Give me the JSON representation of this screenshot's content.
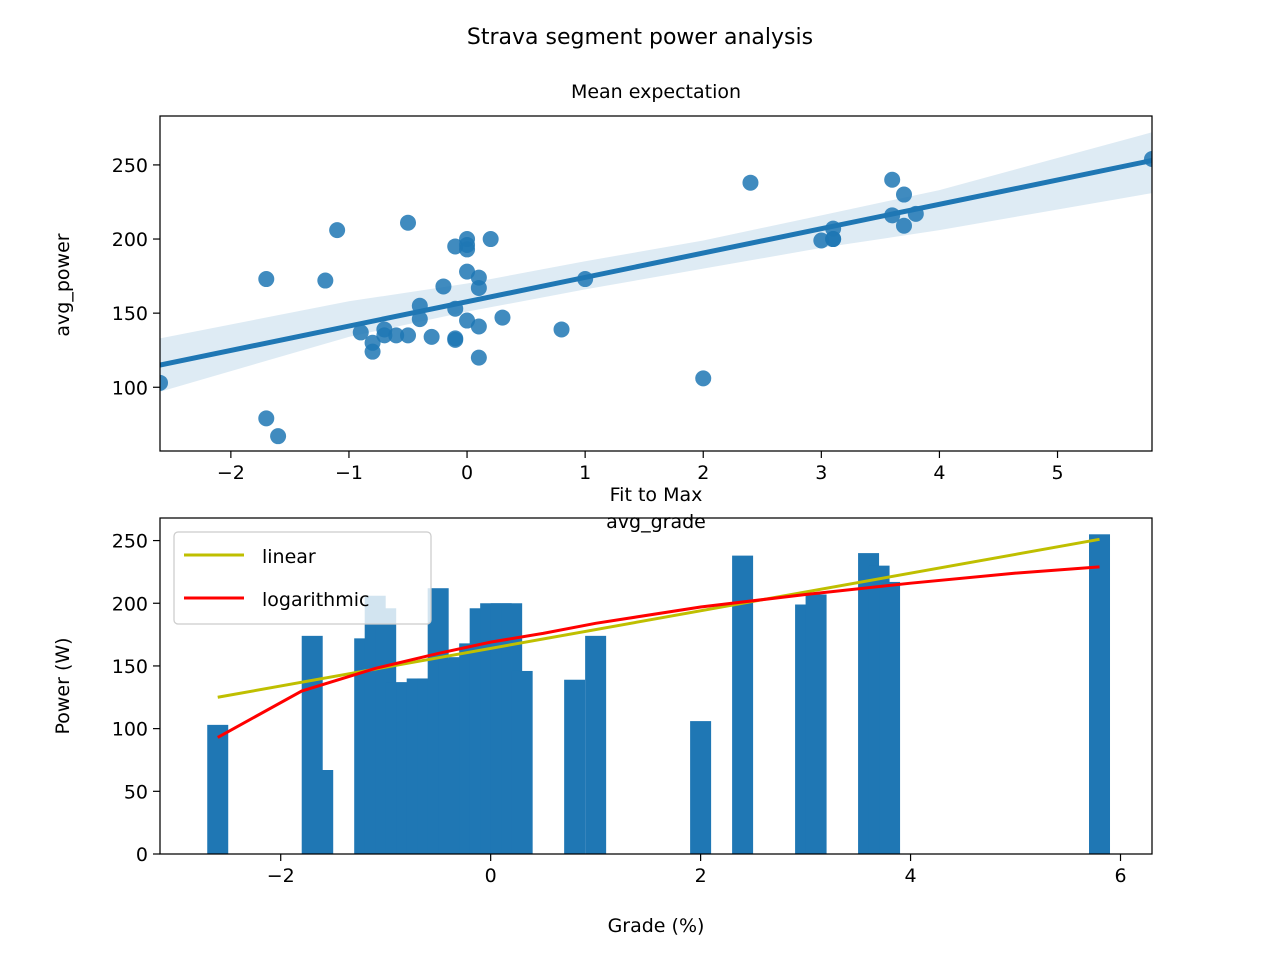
{
  "figure": {
    "suptitle": "Strava segment power analysis"
  },
  "chart_data": [
    {
      "type": "scatter",
      "title": "Mean expectation",
      "xlabel": "avg_grade",
      "ylabel": "avg_power",
      "xlim": [
        -2.6,
        5.8
      ],
      "ylim": [
        57,
        283
      ],
      "xticks": [
        "−2",
        "−1",
        "0",
        "1",
        "2",
        "3",
        "4",
        "5"
      ],
      "xtick_values": [
        -2,
        -1,
        0,
        1,
        2,
        3,
        4,
        5
      ],
      "yticks": [
        "100",
        "150",
        "200",
        "250"
      ],
      "ytick_values": [
        100,
        150,
        200,
        250
      ],
      "grid": false,
      "point_color": "#1f77b4",
      "regression": {
        "x": [
          -2.6,
          5.8
        ],
        "y": [
          115,
          253
        ],
        "color": "#1f77b4"
      },
      "confidence_band": {
        "x": [
          -2.6,
          -1,
          0,
          1,
          2,
          3,
          4,
          5.8
        ],
        "lower": [
          97,
          134,
          151,
          166,
          180,
          194,
          206,
          231
        ],
        "upper": [
          133,
          158,
          170,
          185,
          199,
          216,
          233,
          272
        ]
      },
      "points": [
        [
          -2.6,
          103
        ],
        [
          -1.7,
          173
        ],
        [
          -1.7,
          79
        ],
        [
          -1.6,
          67
        ],
        [
          -1.2,
          172
        ],
        [
          -1.1,
          206
        ],
        [
          -0.9,
          137
        ],
        [
          -0.8,
          130
        ],
        [
          -0.8,
          124
        ],
        [
          -0.7,
          139
        ],
        [
          -0.7,
          135
        ],
        [
          -0.6,
          135
        ],
        [
          -0.5,
          211
        ],
        [
          -0.5,
          135
        ],
        [
          -0.4,
          155
        ],
        [
          -0.4,
          146
        ],
        [
          -0.3,
          134
        ],
        [
          -0.2,
          168
        ],
        [
          -0.1,
          153
        ],
        [
          -0.1,
          133
        ],
        [
          -0.1,
          132
        ],
        [
          -0.1,
          195
        ],
        [
          0,
          200
        ],
        [
          0,
          196
        ],
        [
          0,
          193
        ],
        [
          0,
          178
        ],
        [
          0,
          145
        ],
        [
          0.1,
          174
        ],
        [
          0.1,
          167
        ],
        [
          0.1,
          141
        ],
        [
          0.1,
          120
        ],
        [
          0.2,
          200
        ],
        [
          0.3,
          147
        ],
        [
          0.8,
          139
        ],
        [
          1.0,
          173
        ],
        [
          2.0,
          106
        ],
        [
          2.4,
          238
        ],
        [
          3.0,
          199
        ],
        [
          3.1,
          207
        ],
        [
          3.1,
          200
        ],
        [
          3.1,
          200
        ],
        [
          3.6,
          240
        ],
        [
          3.6,
          216
        ],
        [
          3.7,
          230
        ],
        [
          3.7,
          209
        ],
        [
          3.8,
          217
        ],
        [
          5.8,
          254
        ]
      ]
    },
    {
      "type": "bar",
      "title": "Fit to Max",
      "xlabel": "Grade (%)",
      "ylabel": "Power (W)",
      "xlim": [
        -3.15,
        6.3
      ],
      "ylim": [
        0,
        268
      ],
      "xticks": [
        "−2",
        "0",
        "2",
        "4",
        "6"
      ],
      "xtick_values": [
        -2,
        0,
        2,
        4,
        6
      ],
      "yticks": [
        "0",
        "50",
        "100",
        "150",
        "200",
        "250"
      ],
      "ytick_values": [
        0,
        50,
        100,
        150,
        200,
        250
      ],
      "grid": false,
      "legend_position": "upper-left",
      "bar_width": 0.2,
      "bar_color": "#1f77b4",
      "bars": [
        [
          -2.6,
          103
        ],
        [
          -1.7,
          174
        ],
        [
          -1.6,
          67
        ],
        [
          -1.2,
          172
        ],
        [
          -1.1,
          206
        ],
        [
          -1.0,
          196
        ],
        [
          -0.9,
          137
        ],
        [
          -0.8,
          137
        ],
        [
          -0.7,
          140
        ],
        [
          -0.6,
          140
        ],
        [
          -0.5,
          212
        ],
        [
          -0.4,
          156
        ],
        [
          -0.3,
          157
        ],
        [
          -0.2,
          168
        ],
        [
          -0.1,
          196
        ],
        [
          0,
          200
        ],
        [
          0.1,
          200
        ],
        [
          0.2,
          200
        ],
        [
          0.3,
          146
        ],
        [
          0.8,
          139
        ],
        [
          1.0,
          174
        ],
        [
          2.0,
          106
        ],
        [
          2.4,
          238
        ],
        [
          3.0,
          199
        ],
        [
          3.1,
          207
        ],
        [
          3.6,
          240
        ],
        [
          3.7,
          230
        ],
        [
          3.8,
          217
        ],
        [
          5.8,
          255
        ]
      ],
      "series": [
        {
          "name": "linear",
          "color": "#bfbf00",
          "x": [
            -2.6,
            5.8
          ],
          "y": [
            125,
            251
          ]
        },
        {
          "name": "logarithmic",
          "color": "#ff0000",
          "x": [
            -2.6,
            -1.8,
            -1.1,
            -0.5,
            0,
            0.5,
            1,
            2,
            3,
            4,
            5,
            5.8
          ],
          "y": [
            93,
            130,
            148,
            160,
            169,
            176,
            184,
            197,
            207,
            216,
            224,
            229
          ]
        }
      ]
    }
  ]
}
